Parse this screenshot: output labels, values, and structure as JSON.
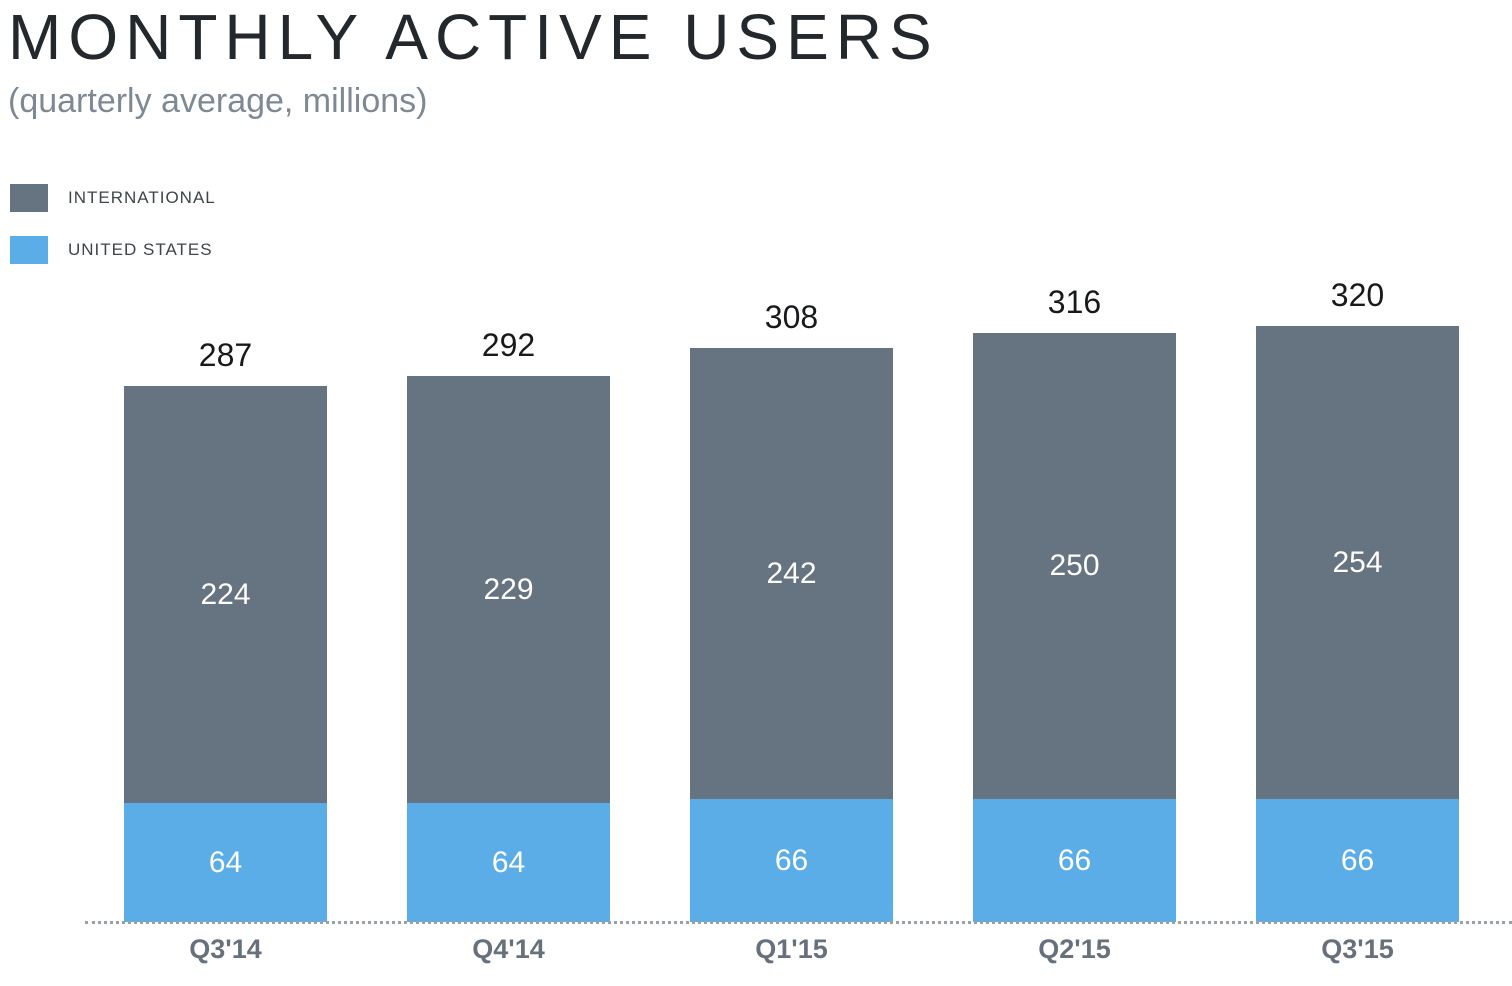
{
  "header": {
    "title": "MONTHLY ACTIVE USERS",
    "subtitle": "(quarterly average, millions)"
  },
  "colors": {
    "international": "#667380",
    "united_states": "#5BADE8",
    "title_text": "#23282d",
    "subtitle_text": "#7e8993",
    "axis_label_text": "#66717c",
    "baseline_dots": "#98a0a8",
    "segment_label_text": "#ffffff",
    "total_label_text": "#17191b"
  },
  "chart_data": {
    "type": "bar",
    "stacked": true,
    "title": "MONTHLY ACTIVE USERS",
    "subtitle": "(quarterly average, millions)",
    "categories": [
      "Q3'14",
      "Q4'14",
      "Q1'15",
      "Q2'15",
      "Q3'15"
    ],
    "series": [
      {
        "name": "INTERNATIONAL",
        "color": "#667380",
        "values": [
          224,
          229,
          242,
          250,
          254
        ]
      },
      {
        "name": "UNITED STATES",
        "color": "#5BADE8",
        "values": [
          64,
          64,
          66,
          66,
          66
        ]
      }
    ],
    "totals": [
      287,
      292,
      308,
      316,
      320
    ],
    "ylim": [
      0,
      320
    ],
    "grid": false,
    "y_axis_shown": false,
    "legend_position": "top-left",
    "total_labels": "above-bars",
    "segment_labels": "inside-white",
    "x_axis_style": "dotted-baseline"
  }
}
